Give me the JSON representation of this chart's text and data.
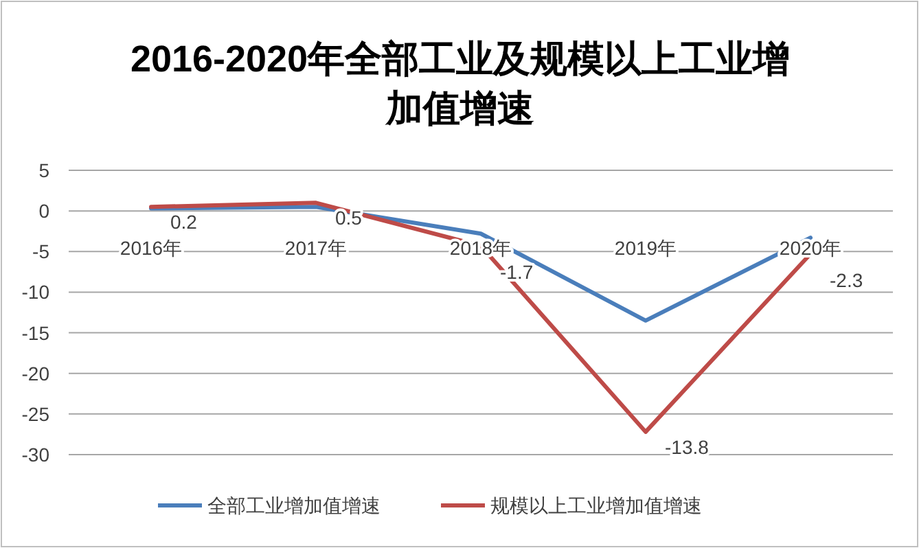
{
  "chart_data": {
    "type": "line",
    "title": "2016-2020年全部工业及规模以上工业增加值增速",
    "categories": [
      "2016年",
      "2017年",
      "2018年",
      "2019年",
      "2020年"
    ],
    "series": [
      {
        "name": "全部工业增加值增速",
        "color": "#4a7ebb",
        "values": [
          0.3,
          0.5,
          -2.8,
          -13.5,
          -3.3
        ]
      },
      {
        "name": "规模以上工业增加值增速",
        "color": "#be4b48",
        "values": [
          0.5,
          1.0,
          -4.3,
          -27.2,
          -5.3
        ]
      }
    ],
    "annotations": [
      "0.2",
      "0.5",
      "-1.7",
      "-13.8",
      "-2.3"
    ],
    "ylim": [
      -30,
      5
    ],
    "yticks": [
      5,
      0,
      -5,
      -10,
      -15,
      -20,
      -25,
      -30
    ],
    "grid": "y",
    "legend": "bottom",
    "marker": "none",
    "line_style": "solid"
  }
}
